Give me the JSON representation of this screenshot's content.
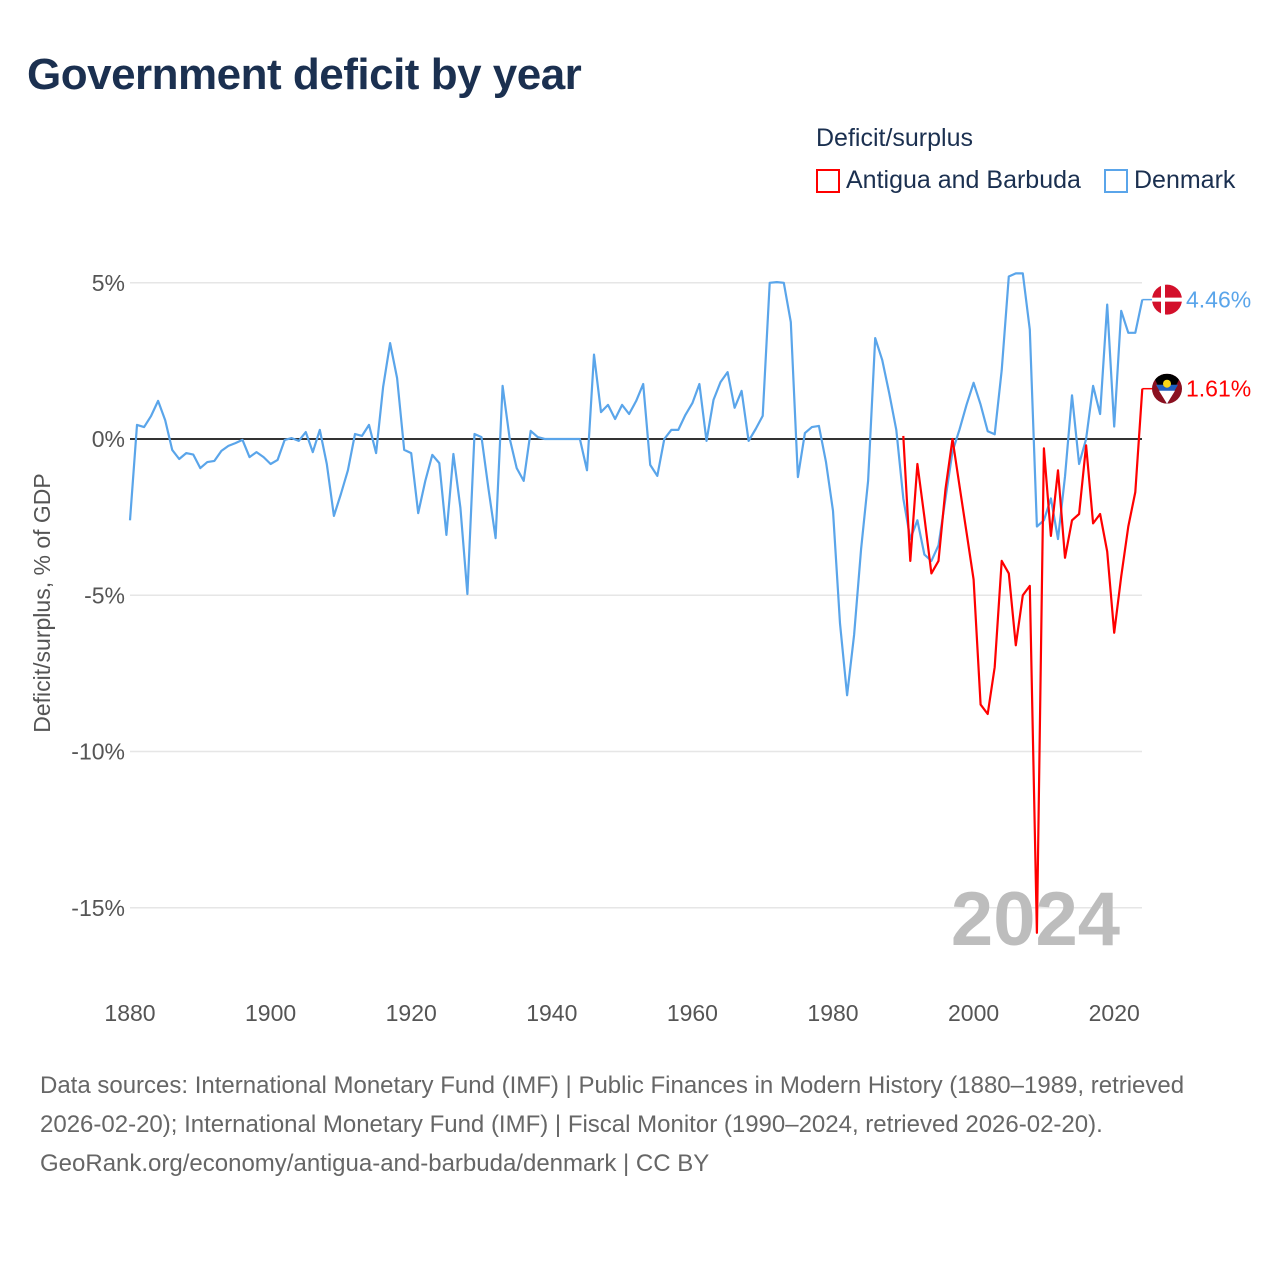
{
  "title": "Government deficit by year",
  "legend": {
    "title": "Deficit/surplus",
    "items": [
      {
        "label": "Antigua and Barbuda",
        "color": "#ff0000"
      },
      {
        "label": "Denmark",
        "color": "#5aa5ea"
      }
    ]
  },
  "footer": {
    "sources": "Data sources: International Monetary Fund (IMF) | Public Finances in Modern History (1880–1989, retrieved 2026-02-20); International Monetary Fund (IMF) | Fiscal Monitor (1990–2024, retrieved 2026-02-20).",
    "link": "GeoRank.org/economy/antigua-and-barbuda/denmark | CC BY"
  },
  "chart_data": {
    "type": "line",
    "title": "Government deficit by year",
    "xlabel": "",
    "ylabel": "Deficit/surplus, % of GDP",
    "xlim": [
      1880,
      2024
    ],
    "ylim": [
      -17,
      6
    ],
    "x_ticks": [
      "1880",
      "1900",
      "1920",
      "1940",
      "1960",
      "1980",
      "2000",
      "2020"
    ],
    "y_ticks": [
      {
        "v": 5,
        "label": "5%"
      },
      {
        "v": 0,
        "label": "0%"
      },
      {
        "v": -5,
        "label": "-5%"
      },
      {
        "v": -10,
        "label": "-10%"
      },
      {
        "v": -15,
        "label": "-15%"
      }
    ],
    "watermark_year": "2024",
    "series": [
      {
        "name": "Denmark",
        "color": "#5aa5ea",
        "end_label": "4.46%",
        "start": 1880,
        "values": [
          -2.6,
          0.45,
          0.38,
          0.74,
          1.22,
          0.6,
          -0.35,
          -0.64,
          -0.45,
          -0.5,
          -0.93,
          -0.74,
          -0.7,
          -0.38,
          -0.22,
          -0.13,
          -0.03,
          -0.58,
          -0.42,
          -0.58,
          -0.8,
          -0.67,
          -0.03,
          0.03,
          -0.06,
          0.22,
          -0.42,
          0.29,
          -0.8,
          -2.46,
          -1.76,
          -1.0,
          0.16,
          0.1,
          0.45,
          -0.45,
          1.66,
          3.07,
          1.95,
          -0.35,
          -0.45,
          -2.37,
          -1.34,
          -0.51,
          -0.77,
          -3.07,
          -0.48,
          -2.2,
          -4.96,
          0.16,
          0.06,
          -1.6,
          -3.17,
          1.7,
          0.03,
          -0.93,
          -1.34,
          0.26,
          0.06,
          0,
          0,
          0,
          0,
          0,
          0,
          -1.0,
          2.7,
          0.86,
          1.09,
          0.64,
          1.09,
          0.8,
          1.22,
          1.76,
          -0.83,
          -1.18,
          0,
          0.29,
          0.29,
          0.77,
          1.15,
          1.76,
          -0.06,
          1.25,
          1.82,
          2.14,
          1.0,
          1.54,
          -0.06,
          0.32,
          0.74,
          5.0,
          5.02,
          5.0,
          3.74,
          -1.22,
          0.19,
          0.38,
          0.42,
          -0.74,
          -2.3,
          -5.9,
          -8.2,
          -6.27,
          -3.52,
          -1.34,
          3.23,
          2.53,
          1.47,
          0.29,
          -1.9,
          -3.2,
          -2.6,
          -3.7,
          -3.9,
          -3.4,
          -1.9,
          -0.4,
          0.3,
          1.1,
          1.8,
          1.1,
          0.25,
          0.15,
          2.2,
          5.2,
          5.3,
          5.3,
          3.5,
          -2.8,
          -2.6,
          -1.9,
          -3.2,
          -1.2,
          1.4,
          -0.8,
          0.0,
          1.7,
          0.8,
          4.3,
          0.4,
          4.1,
          3.4,
          3.4,
          4.46
        ]
      },
      {
        "name": "Antigua and Barbuda",
        "color": "#ff0000",
        "end_label": "1.61%",
        "start": 1990,
        "values": [
          0.1,
          -3.9,
          -0.8,
          -2.5,
          -4.3,
          -3.9,
          -1.6,
          0.0,
          -1.5,
          -3.0,
          -4.5,
          -8.5,
          -8.8,
          -7.3,
          -3.9,
          -4.3,
          -6.6,
          -5.0,
          -4.7,
          -15.8,
          -0.3,
          -3.1,
          -1.0,
          -3.8,
          -2.6,
          -2.4,
          -0.2,
          -2.7,
          -2.4,
          -3.6,
          -6.2,
          -4.4,
          -2.8,
          -1.7,
          1.61
        ]
      }
    ]
  }
}
